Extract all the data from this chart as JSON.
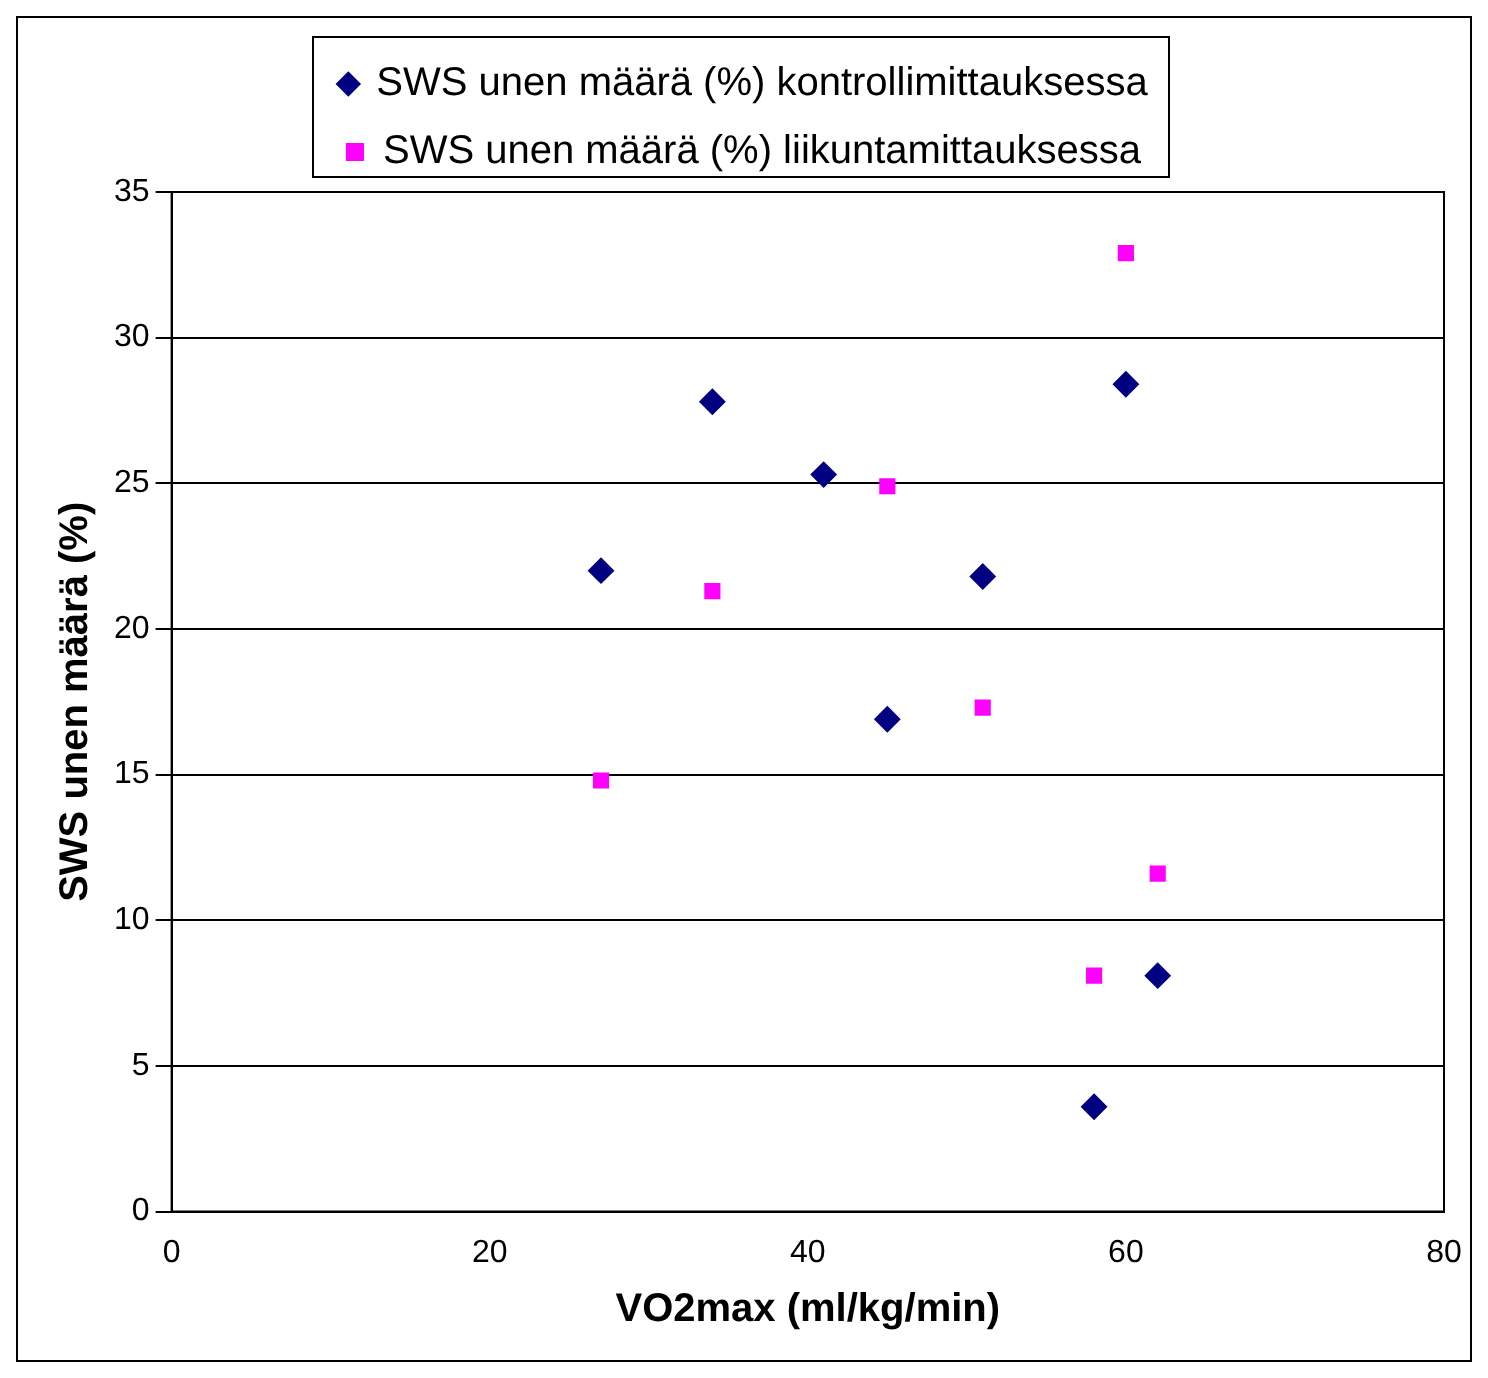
{
  "chart_data": {
    "type": "scatter",
    "xlabel": "VO2max (ml/kg/min)",
    "ylabel": "SWS unen määrä (%)",
    "xlim": [
      0,
      80
    ],
    "xticks": [
      0,
      20,
      40,
      60,
      80
    ],
    "ylim": [
      0,
      35
    ],
    "yticks": [
      0,
      5,
      10,
      15,
      20,
      25,
      30,
      35
    ],
    "grid": "y",
    "legend": "top",
    "series": [
      {
        "name": "SWS unen määrä (%) kontrollimittauksessa",
        "color": "#000080",
        "marker": "diamond",
        "x": [
          27,
          34,
          41,
          45,
          51,
          58,
          60,
          62
        ],
        "values": [
          22,
          27.8,
          25.3,
          16.9,
          21.8,
          3.6,
          28.4,
          8.1
        ]
      },
      {
        "name": "SWS unen määrä (%) liikuntamittauksessa",
        "color": "#ff00ff",
        "marker": "square",
        "x": [
          27,
          34,
          45,
          51,
          58,
          60,
          62
        ],
        "values": [
          14.8,
          21.3,
          24.9,
          17.3,
          8.1,
          32.9,
          11.6
        ]
      }
    ]
  }
}
